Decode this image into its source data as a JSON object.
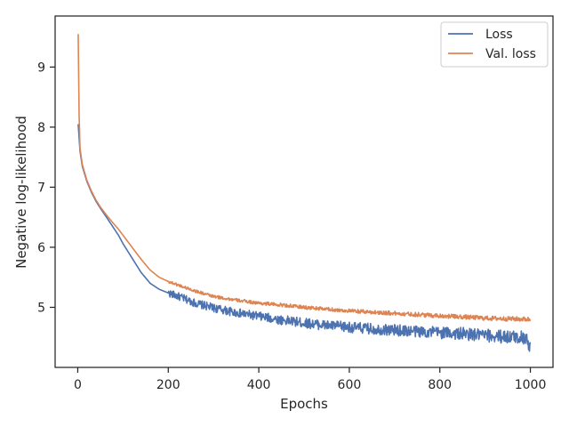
{
  "chart_data": {
    "type": "line",
    "title": "",
    "xlabel": "Epochs",
    "ylabel": "Negative log-likelihood",
    "xlim": [
      -50,
      1050
    ],
    "ylim": [
      4.0,
      9.85
    ],
    "xticks": [
      0,
      200,
      400,
      600,
      800,
      1000
    ],
    "yticks": [
      5,
      6,
      7,
      8,
      9
    ],
    "grid": false,
    "legend_position": "top-right",
    "series": [
      {
        "name": "Loss",
        "color": "#4c72b0",
        "x": [
          1,
          5,
          10,
          20,
          30,
          40,
          50,
          60,
          75,
          90,
          100,
          120,
          140,
          160,
          180,
          200,
          230,
          260,
          300,
          350,
          400,
          450,
          500,
          550,
          600,
          650,
          700,
          750,
          800,
          850,
          900,
          950,
          990,
          1000
        ],
        "values": [
          8.05,
          7.6,
          7.35,
          7.1,
          6.92,
          6.77,
          6.65,
          6.54,
          6.37,
          6.2,
          6.06,
          5.82,
          5.58,
          5.4,
          5.3,
          5.24,
          5.16,
          5.07,
          4.99,
          4.91,
          4.85,
          4.79,
          4.74,
          4.7,
          4.67,
          4.64,
          4.62,
          4.6,
          4.58,
          4.56,
          4.53,
          4.51,
          4.5,
          4.3
        ],
        "noise": 0.05
      },
      {
        "name": "Val. loss",
        "color": "#dd8452",
        "x": [
          1,
          3,
          5,
          10,
          20,
          30,
          40,
          50,
          60,
          75,
          90,
          100,
          120,
          140,
          160,
          180,
          200,
          230,
          260,
          300,
          350,
          400,
          450,
          500,
          550,
          600,
          650,
          700,
          750,
          800,
          850,
          900,
          950,
          1000
        ],
        "values": [
          9.55,
          8.2,
          7.65,
          7.38,
          7.12,
          6.94,
          6.79,
          6.67,
          6.57,
          6.43,
          6.3,
          6.2,
          6.0,
          5.8,
          5.62,
          5.5,
          5.43,
          5.35,
          5.27,
          5.18,
          5.12,
          5.07,
          5.04,
          5.0,
          4.97,
          4.94,
          4.92,
          4.9,
          4.88,
          4.86,
          4.84,
          4.82,
          4.81,
          4.8
        ],
        "noise": 0.02
      }
    ]
  }
}
